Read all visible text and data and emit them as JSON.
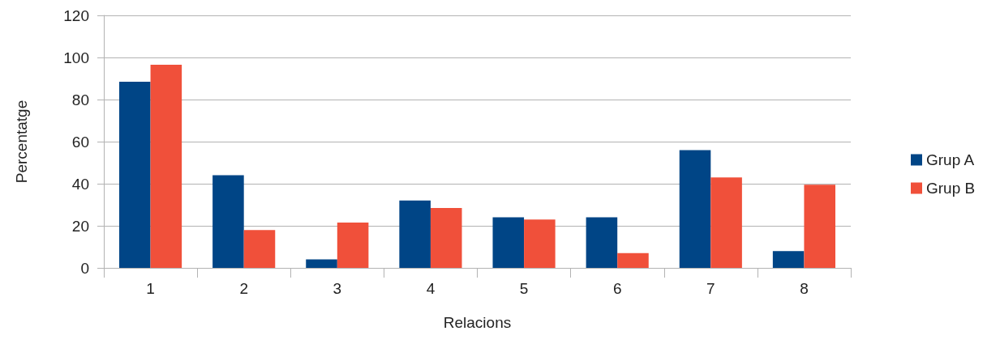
{
  "chart_data": {
    "type": "bar",
    "xlabel": "Relacions",
    "ylabel": "Percentatge",
    "categories": [
      "1",
      "2",
      "3",
      "4",
      "5",
      "6",
      "7",
      "8"
    ],
    "series": [
      {
        "name": "Grup A",
        "color": "#004586",
        "values": [
          88.5,
          44,
          4,
          32,
          24,
          24,
          56,
          8
        ]
      },
      {
        "name": "Grup B",
        "color": "#f0503a",
        "values": [
          96.5,
          18,
          21.5,
          28.5,
          23,
          7,
          43,
          39.5
        ]
      }
    ],
    "ylim": [
      0,
      120
    ],
    "yticks": [
      0,
      20,
      40,
      60,
      80,
      100,
      120
    ],
    "grid": "y",
    "legend": "right"
  }
}
